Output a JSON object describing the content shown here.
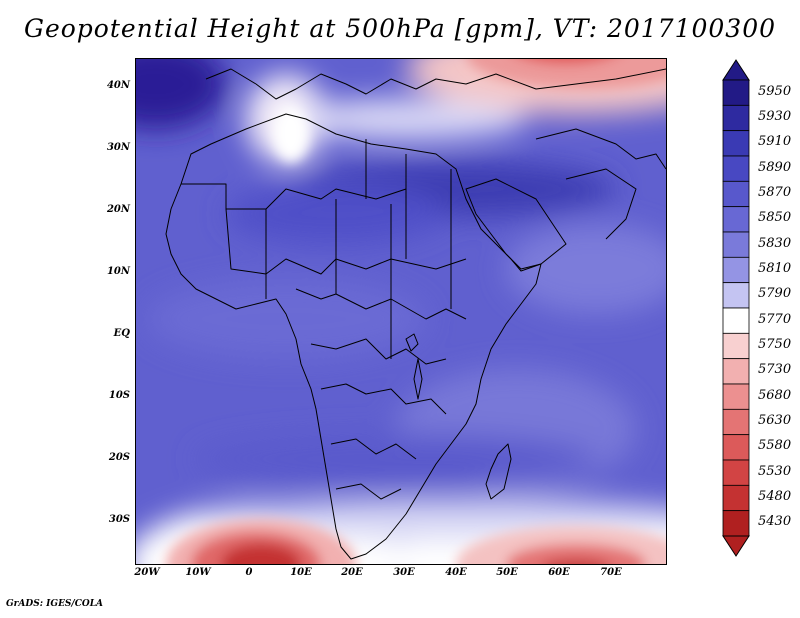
{
  "title": "Geopotential Height at 500hPa [gpm], VT: 2017100300",
  "credit": "GrADS: IGES/COLA",
  "map": {
    "lat_labels": [
      "40N",
      "30N",
      "20N",
      "10N",
      "EQ",
      "10S",
      "20S",
      "30S"
    ],
    "lon_labels": [
      "20W",
      "10W",
      "0",
      "10E",
      "20E",
      "30E",
      "40E",
      "50E",
      "60E",
      "70E"
    ]
  },
  "colorbar": {
    "levels": [
      "5950",
      "5930",
      "5910",
      "5890",
      "5870",
      "5850",
      "5830",
      "5810",
      "5790",
      "5770",
      "5750",
      "5730",
      "5680",
      "5630",
      "5580",
      "5530",
      "5480",
      "5430"
    ],
    "colors": [
      "#221a86",
      "#2e2aa0",
      "#3a3ab4",
      "#4848c2",
      "#5858cc",
      "#6868d4",
      "#7a7ada",
      "#9494e4",
      "#c4c4f2",
      "#ffffff",
      "#f8d0d0",
      "#f2b0b0",
      "#ec9090",
      "#e47474",
      "#dc5a5a",
      "#d24444",
      "#c43232",
      "#b02020"
    ]
  }
}
